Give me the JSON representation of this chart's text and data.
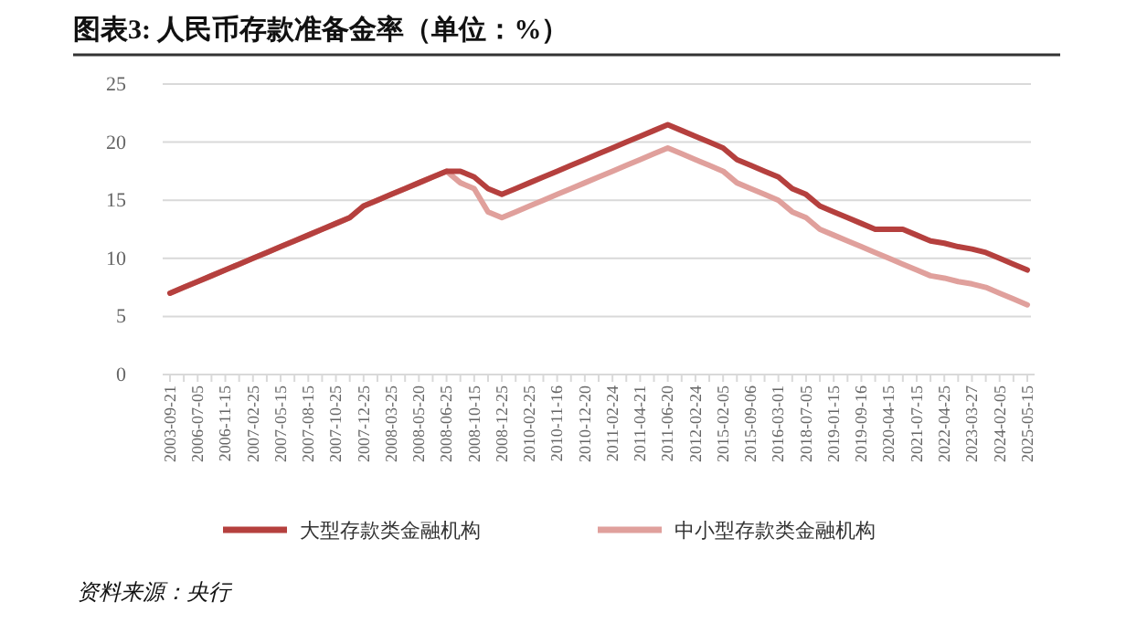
{
  "chart_data": {
    "type": "line",
    "title": "图表3:   人民币存款准备金率（单位：%）",
    "categories": [
      "2003-09-21",
      null,
      "2006-07-05",
      null,
      "2006-11-15",
      null,
      "2007-02-25",
      null,
      "2007-05-15",
      null,
      "2007-08-15",
      null,
      "2007-10-25",
      null,
      "2007-12-25",
      null,
      "2008-03-25",
      null,
      "2008-05-20",
      null,
      "2008-06-25",
      null,
      "2008-10-15",
      null,
      "2008-12-25",
      null,
      "2010-02-25",
      null,
      "2010-11-16",
      null,
      "2010-12-20",
      null,
      "2011-02-24",
      null,
      "2011-04-21",
      null,
      "2011-06-20",
      null,
      "2012-02-24",
      null,
      "2015-02-05",
      null,
      "2015-09-06",
      null,
      "2016-03-01",
      null,
      "2018-07-05",
      null,
      "2019-01-15",
      null,
      "2019-09-16",
      null,
      "2020-04-15",
      null,
      "2021-07-15",
      null,
      "2022-04-25",
      null,
      "2023-03-27",
      null,
      "2024-02-05",
      null,
      "2025-05-15"
    ],
    "series": [
      {
        "name": "大型存款类金融机构",
        "color": "#b5403e",
        "values": [
          7,
          7.5,
          8,
          8.5,
          9,
          9.5,
          10,
          10.5,
          11,
          11.5,
          12,
          12.5,
          13,
          13.5,
          14.5,
          15,
          15.5,
          16,
          16.5,
          17,
          17.5,
          17.5,
          17,
          16,
          15.5,
          16,
          16.5,
          17,
          17.5,
          18,
          18.5,
          19,
          19.5,
          20,
          20.5,
          21,
          21.5,
          21,
          20.5,
          20,
          19.5,
          18.5,
          18,
          17.5,
          17,
          16,
          15.5,
          14.5,
          14,
          13.5,
          13,
          12.5,
          12.5,
          12.5,
          12,
          11.5,
          11.3,
          11,
          10.8,
          10.5,
          10,
          9.5,
          9
        ]
      },
      {
        "name": "中小型存款类金融机构",
        "color": "#e0a09c",
        "values": [
          7,
          7.5,
          8,
          8.5,
          9,
          9.5,
          10,
          10.5,
          11,
          11.5,
          12,
          12.5,
          13,
          13.5,
          14.5,
          15,
          15.5,
          16,
          16.5,
          17,
          17.5,
          16.5,
          16,
          14,
          13.5,
          14,
          14.5,
          15,
          15.5,
          16,
          16.5,
          17,
          17.5,
          18,
          18.5,
          19,
          19.5,
          19,
          18.5,
          18,
          17.5,
          16.5,
          16,
          15.5,
          15,
          14,
          13.5,
          12.5,
          12,
          11.5,
          11,
          10.5,
          10,
          9.5,
          9,
          8.5,
          8.3,
          8,
          7.8,
          7.5,
          7,
          6.5,
          6
        ]
      }
    ],
    "ylim": [
      0,
      25
    ],
    "yticks": [
      0,
      5,
      10,
      15,
      20,
      25
    ],
    "grid": "y",
    "legend": "bottom",
    "line_style": "solid",
    "marker": "none",
    "annotations": [
      "资料来源：央行"
    ]
  }
}
